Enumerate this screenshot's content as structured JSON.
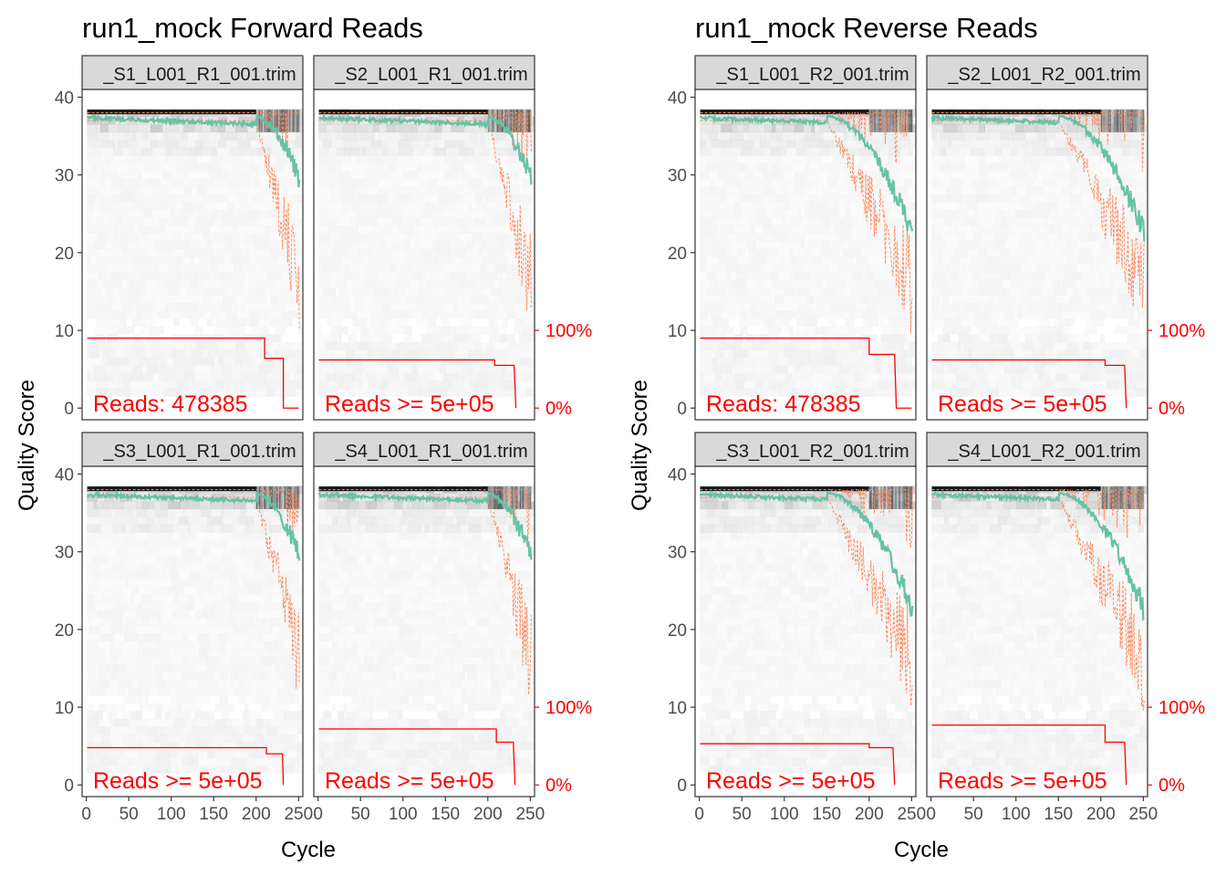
{
  "figures": [
    {
      "title": "run1_mock Forward Reads",
      "xlabel": "Cycle",
      "ylabel": "Quality Score",
      "panels": [
        {
          "strip": "_S1_L001_R1_001.trim",
          "reads_label": "Reads:  478385",
          "cum_start": 0.9,
          "drop1_cycle": 210,
          "cum_mid": 0.64,
          "drop2_cycle": 232,
          "end_cycle": 232
        },
        {
          "strip": "_S2_L001_R1_001.trim",
          "reads_label": "Reads >=  5e+05",
          "cum_start": 0.62,
          "drop1_cycle": 208,
          "cum_mid": 0.55,
          "drop2_cycle": 231,
          "end_cycle": 233
        },
        {
          "strip": "_S3_L001_R1_001.trim",
          "reads_label": "Reads >=  5e+05",
          "cum_start": 0.48,
          "drop1_cycle": 212,
          "cum_mid": 0.4,
          "drop2_cycle": 231,
          "end_cycle": 232
        },
        {
          "strip": "_S4_L001_R1_001.trim",
          "reads_label": "Reads >=  5e+05",
          "cum_start": 0.72,
          "drop1_cycle": 210,
          "cum_mid": 0.55,
          "drop2_cycle": 230,
          "end_cycle": 232
        }
      ]
    },
    {
      "title": "run1_mock Reverse Reads",
      "xlabel": "Cycle",
      "ylabel": "Quality Score",
      "panels": [
        {
          "strip": "_S1_L001_R2_001.trim",
          "reads_label": "Reads:  478385",
          "cum_start": 0.9,
          "drop1_cycle": 200,
          "cum_mid": 0.69,
          "drop2_cycle": 230,
          "end_cycle": 232
        },
        {
          "strip": "_S2_L001_R2_001.trim",
          "reads_label": "Reads >=  5e+05",
          "cum_start": 0.62,
          "drop1_cycle": 205,
          "cum_mid": 0.55,
          "drop2_cycle": 228,
          "end_cycle": 230
        },
        {
          "strip": "_S3_L001_R2_001.trim",
          "reads_label": "Reads >=  5e+05",
          "cum_start": 0.53,
          "drop1_cycle": 200,
          "cum_mid": 0.48,
          "drop2_cycle": 228,
          "end_cycle": 230
        },
        {
          "strip": "_S4_L001_R2_001.trim",
          "reads_label": "Reads >=  5e+05",
          "cum_start": 0.77,
          "drop1_cycle": 205,
          "cum_mid": 0.55,
          "drop2_cycle": 228,
          "end_cycle": 230
        }
      ]
    }
  ],
  "chart_data": {
    "type": "heatmap",
    "xlim": [
      -5,
      255
    ],
    "ylim": [
      -1.5,
      41
    ],
    "x_ticks": [
      0,
      50,
      100,
      150,
      200,
      250
    ],
    "y_ticks": [
      0,
      10,
      20,
      30,
      40
    ],
    "cum_axis_ticks": [
      {
        "label": "0%",
        "value": 0
      },
      {
        "label": "100%",
        "value": 1
      }
    ],
    "mean_quality": {
      "forward": {
        "start": 37.6,
        "drop_cycle": 200,
        "end": 31
      },
      "reverse": {
        "start": 37.6,
        "drop_cycle": 150,
        "end": 24
      }
    }
  },
  "colors": {
    "mean": "#66c2a5",
    "quartile": "#fc8d62",
    "cumulative": "#ff0000",
    "strip_bg": "#d9d9d9",
    "heat": "#000000"
  }
}
